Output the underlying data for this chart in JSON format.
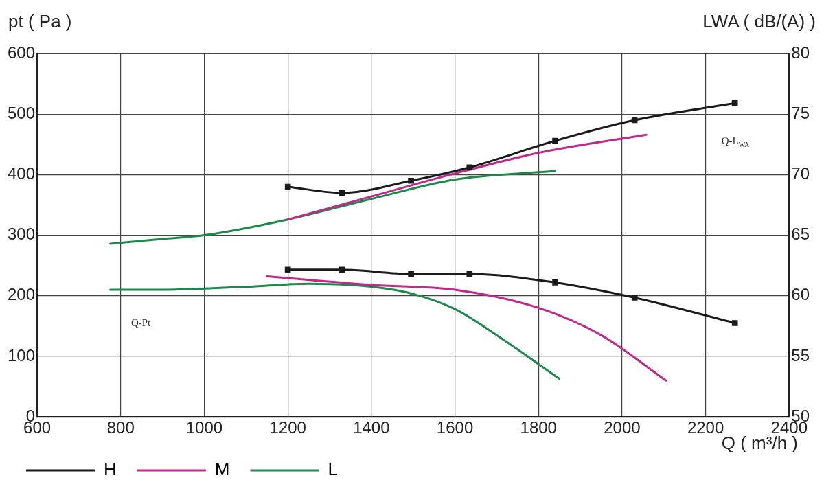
{
  "chart_data": {
    "type": "line",
    "xlabel": "Q ( m³/h )",
    "ylabel": "pt ( Pa )",
    "y2label": "LWA ( dB/(A) )",
    "xlim": [
      600,
      2400
    ],
    "xticks": [
      600,
      800,
      1000,
      1200,
      1400,
      1600,
      1800,
      2000,
      2200,
      2400
    ],
    "ylim": [
      0,
      600
    ],
    "yticks": [
      0,
      100,
      200,
      300,
      400,
      500,
      600
    ],
    "y2lim": [
      50,
      80
    ],
    "y2ticks": [
      50,
      55,
      60,
      65,
      70,
      75,
      80
    ],
    "grid": true,
    "legend": "bottom left",
    "line_style": "solid",
    "series": [
      {
        "name": "H",
        "color": "#1a1a1a",
        "marker": "square",
        "x": [
          1200,
          1330,
          1495,
          1635,
          1840,
          2030,
          2270
        ],
        "values": [
          243,
          243,
          236,
          236,
          222,
          197,
          155
        ]
      },
      {
        "name": "M",
        "color": "#c0288a",
        "marker": "none",
        "x": [
          1150,
          1400,
          1600,
          1800,
          1950,
          2105
        ],
        "values": [
          232,
          218,
          210,
          180,
          135,
          60
        ]
      },
      {
        "name": "L",
        "color": "#1a8a4a",
        "marker": "none",
        "x": [
          775,
          900,
          1100,
          1250,
          1400,
          1500,
          1600,
          1700,
          1850
        ],
        "values": [
          210,
          210,
          215,
          220,
          215,
          203,
          178,
          135,
          63
        ]
      },
      {
        "color": "#1a1a1a",
        "marker": "square",
        "axis": "y2",
        "x": [
          1200,
          1330,
          1495,
          1635,
          1840,
          2030,
          2270
        ],
        "values": [
          69.0,
          68.5,
          69.5,
          70.6,
          72.8,
          74.5,
          75.9
        ]
      },
      {
        "color": "#c0288a",
        "marker": "none",
        "axis": "y2",
        "x": [
          1200,
          1400,
          1600,
          1800,
          2058
        ],
        "values": [
          66.3,
          68.2,
          70.1,
          71.8,
          73.3
        ]
      },
      {
        "color": "#1a8a4a",
        "marker": "none",
        "axis": "y2",
        "x": [
          775,
          900,
          1000,
          1200,
          1400,
          1600,
          1840
        ],
        "values": [
          64.3,
          64.7,
          65.0,
          66.3,
          68.0,
          69.6,
          70.3
        ]
      }
    ],
    "annotations": [
      "Q-Pt",
      "Q-L$_{WA}$"
    ]
  }
}
